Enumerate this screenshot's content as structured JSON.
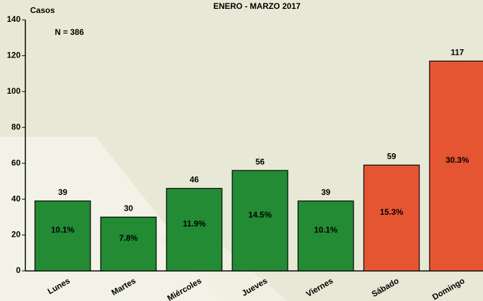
{
  "chart_data": {
    "type": "bar",
    "title": "ENERO - MARZO 2017",
    "ylabel": "Casos",
    "annotation": "N = 386",
    "categories": [
      "Lunes",
      "Martes",
      "Miércoles",
      "Jueves",
      "Viernes",
      "Sábado",
      "Domingo"
    ],
    "values": [
      39,
      30,
      46,
      56,
      39,
      59,
      117
    ],
    "percent_labels": [
      "10.1%",
      "7.8%",
      "11.9%",
      "14.5%",
      "10.1%",
      "15.3%",
      "30.3%"
    ],
    "colors": [
      "#228b34",
      "#228b34",
      "#228b34",
      "#228b34",
      "#228b34",
      "#e55532",
      "#e55532"
    ],
    "ylim": [
      0,
      140
    ],
    "yticks": [
      0,
      20,
      40,
      60,
      80,
      100,
      120,
      140
    ],
    "grid": false
  }
}
